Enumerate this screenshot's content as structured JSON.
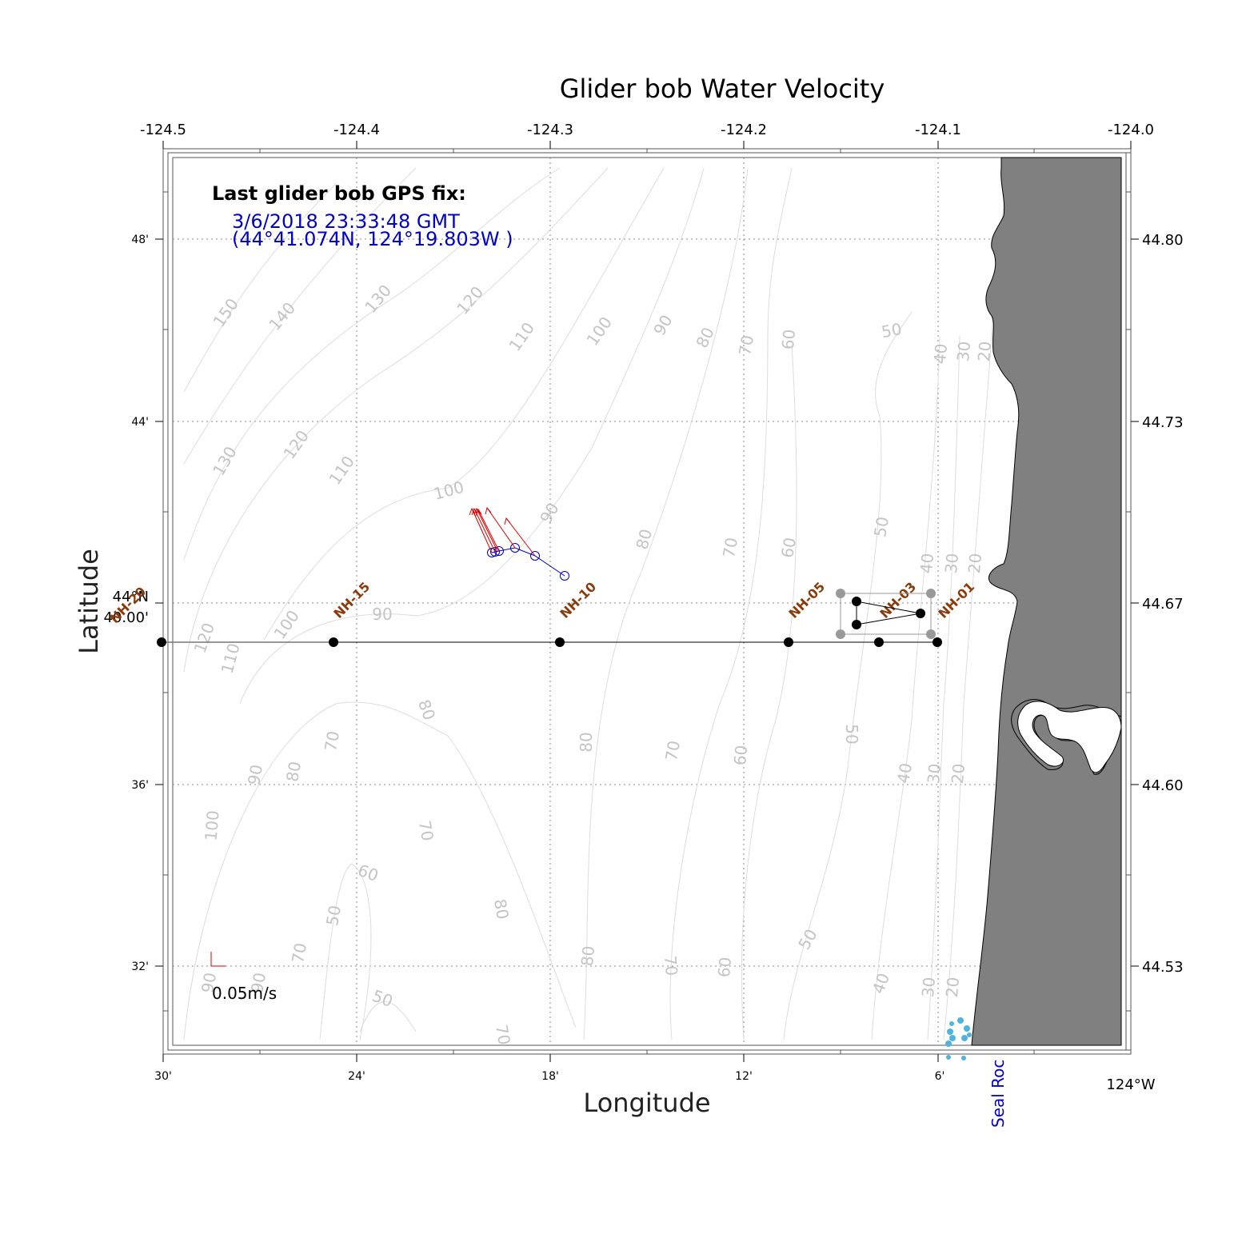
{
  "title": "Glider bob Water Velocity",
  "axes": {
    "xlabel": "Longitude",
    "ylabel": "Latitude",
    "top_ticks": [
      "-124.5",
      "-124.4",
      "-124.3",
      "-124.2",
      "-124.1",
      "-124.0"
    ],
    "bottom_ticks": [
      "30'",
      "24'",
      "18'",
      "12'",
      "6'"
    ],
    "bottom_end_label": "124°W",
    "left_ticks": [
      "48'",
      "44'",
      "36'",
      "32'"
    ],
    "left_mid_label_1": "44°N",
    "left_mid_label_2": "40.00'",
    "right_ticks": [
      "44.80",
      "44.73",
      "44.67",
      "44.60",
      "44.53"
    ]
  },
  "gps_fix": {
    "heading": "Last glider bob GPS fix:",
    "time": "3/6/2018 23:33:48 GMT",
    "position": "(44°41.074N, 124°19.803W )"
  },
  "scale": {
    "label": "0.05m/s"
  },
  "place_label": "Seal Roc",
  "stations": [
    "NH-20",
    "NH-15",
    "NH-10",
    "NH-05",
    "NH-03",
    "NH-01"
  ],
  "contour_labels": [
    "150",
    "140",
    "130",
    "120",
    "110",
    "100",
    "90",
    "80",
    "70",
    "60",
    "50",
    "40",
    "30",
    "20"
  ],
  "colors": {
    "land": "#808080",
    "track": "#0000cc",
    "velocity": "#dd0000",
    "station_label": "#8b3a0a",
    "contour": "#c4c4c4",
    "rocks": "#4fb3e0"
  }
}
